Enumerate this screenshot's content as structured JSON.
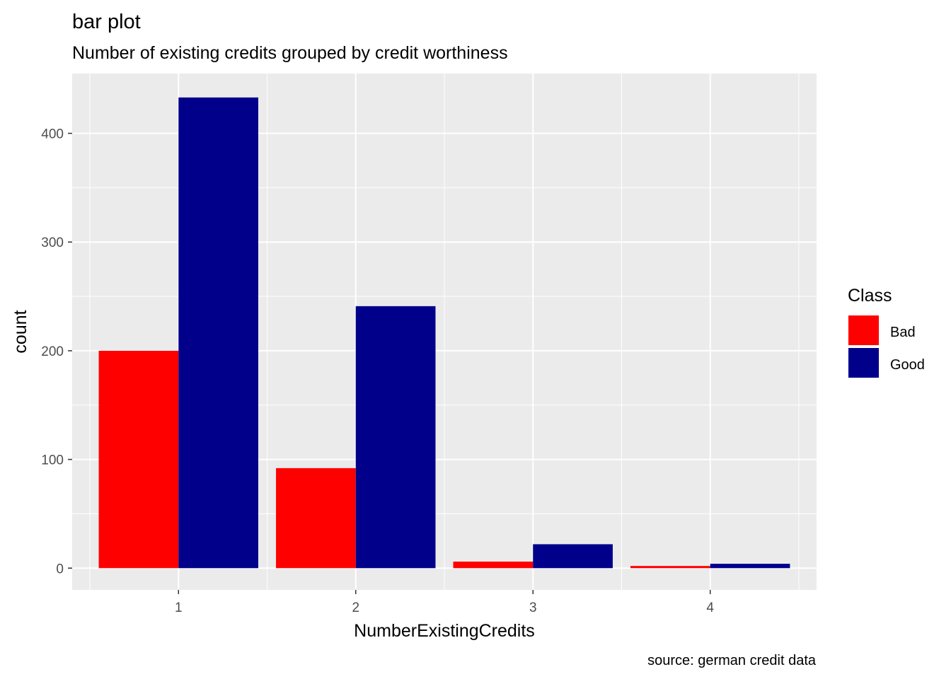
{
  "chart_data": {
    "type": "bar",
    "title": "bar plot",
    "subtitle": "Number of existing credits grouped by credit worthiness",
    "caption": "source: german credit data",
    "xlabel": "NumberExistingCredits",
    "ylabel": "count",
    "categories": [
      "1",
      "2",
      "3",
      "4"
    ],
    "yticks": [
      "0",
      "100",
      "200",
      "300",
      "400"
    ],
    "ylim": [
      -20,
      455
    ],
    "grid": true,
    "background": "#EBEBEB",
    "legend": {
      "title": "Class",
      "position": "right"
    },
    "series": [
      {
        "name": "Bad",
        "color": "#FF0000",
        "values": [
          200,
          92,
          6,
          2
        ]
      },
      {
        "name": "Good",
        "color": "#00008B",
        "values": [
          433,
          241,
          22,
          4
        ]
      }
    ]
  }
}
